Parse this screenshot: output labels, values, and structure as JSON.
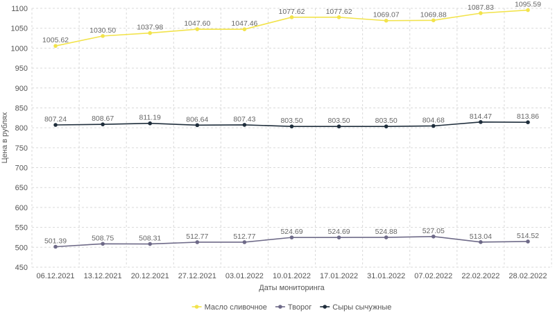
{
  "chart_data": {
    "type": "line",
    "title": "",
    "xlabel": "Даты мониторинга",
    "ylabel": "Цена в рублях",
    "ylim": [
      450,
      1100
    ],
    "ytick_step": 50,
    "grid": true,
    "legend_position": "bottom",
    "categories": [
      "06.12.2021",
      "13.12.2021",
      "20.12.2021",
      "27.12.2021",
      "03.01.2022",
      "10.01.2022",
      "17.01.2022",
      "31.01.2022",
      "07.02.2022",
      "22.02.2022",
      "28.02.2022"
    ],
    "series": [
      {
        "name": "Масло сливочное",
        "color": "#f2e34b",
        "values": [
          1005.62,
          1030.5,
          1037.98,
          1047.6,
          1047.46,
          1077.62,
          1077.62,
          1069.07,
          1069.88,
          1087.83,
          1095.59
        ],
        "labels": [
          "1005.62",
          "1030.50",
          "1037.98",
          "1047.60",
          "1047.46",
          "1077.62",
          "1077.62",
          "1069.07",
          "1069.88",
          "1087.83",
          "1095.59"
        ]
      },
      {
        "name": "Творог",
        "color": "#6e6a88",
        "values": [
          501.39,
          508.75,
          508.31,
          512.77,
          512.77,
          524.69,
          524.69,
          524.88,
          527.05,
          513.04,
          514.52
        ],
        "labels": [
          "501.39",
          "508.75",
          "508.31",
          "512.77",
          "512.77",
          "524.69",
          "524.69",
          "524.88",
          "527.05",
          "513.04",
          "514.52"
        ]
      },
      {
        "name": "Сыры сычужные",
        "color": "#1e2d3b",
        "values": [
          807.24,
          808.67,
          811.19,
          806.64,
          807.43,
          803.5,
          803.5,
          803.5,
          804.68,
          814.47,
          813.86
        ],
        "labels": [
          "807.24",
          "808.67",
          "811.19",
          "806.64",
          "807.43",
          "803.50",
          "803.50",
          "803.50",
          "804.68",
          "814.47",
          "813.86"
        ]
      }
    ]
  }
}
